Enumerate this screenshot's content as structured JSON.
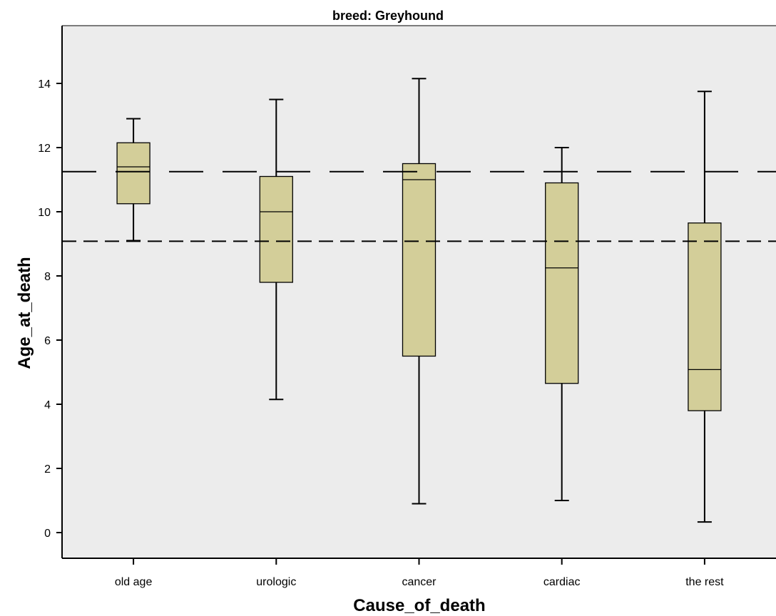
{
  "chart_data": {
    "type": "boxplot",
    "title": "breed: Greyhound",
    "xlabel": "Cause_of_death",
    "ylabel": "Age_at_death",
    "ylim": [
      -0.8,
      15.8
    ],
    "yticks": [
      0,
      2,
      4,
      6,
      8,
      10,
      12,
      14
    ],
    "categories": [
      "old age",
      "urologic",
      "cancer",
      "cardiac",
      "the rest"
    ],
    "boxes": [
      {
        "category": "old age",
        "min": 9.1,
        "q1": 10.25,
        "median": 11.4,
        "q3": 12.15,
        "max": 12.9
      },
      {
        "category": "urologic",
        "min": 4.15,
        "q1": 7.8,
        "median": 10.0,
        "q3": 11.1,
        "max": 13.5
      },
      {
        "category": "cancer",
        "min": 0.9,
        "q1": 5.5,
        "median": 11.0,
        "q3": 11.5,
        "max": 14.15
      },
      {
        "category": "cardiac",
        "min": 1.0,
        "q1": 4.65,
        "median": 8.25,
        "q3": 10.9,
        "max": 12.0
      },
      {
        "category": "the rest",
        "min": 0.33,
        "q1": 3.8,
        "median": 5.08,
        "q3": 9.65,
        "max": 13.75
      }
    ],
    "reference_lines": [
      {
        "y": 11.25,
        "style": "long-dash"
      },
      {
        "y": 9.08,
        "style": "dash"
      }
    ],
    "grid": false,
    "colors": {
      "box_fill": "#d3ce99",
      "plot_background": "#ececec",
      "stroke": "#000000"
    }
  }
}
